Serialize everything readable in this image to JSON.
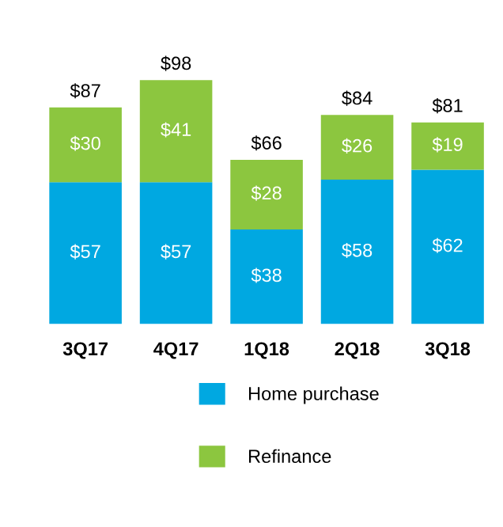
{
  "chart_data": {
    "type": "bar",
    "stacked": true,
    "categories": [
      "3Q17",
      "4Q17",
      "1Q18",
      "2Q18",
      "3Q18"
    ],
    "series": [
      {
        "name": "Home purchase",
        "color": "#00a8e1",
        "values": [
          57,
          57,
          38,
          58,
          62
        ],
        "value_labels": [
          "$57",
          "$57",
          "$38",
          "$58",
          "$62"
        ]
      },
      {
        "name": "Refinance",
        "color": "#8cc63f",
        "values": [
          30,
          41,
          28,
          26,
          19
        ],
        "value_labels": [
          "$30",
          "$41",
          "$28",
          "$26",
          "$19"
        ]
      }
    ],
    "totals": [
      "$87",
      "$98",
      "$66",
      "$84",
      "$81"
    ],
    "legend": "bottom",
    "grid": false
  }
}
